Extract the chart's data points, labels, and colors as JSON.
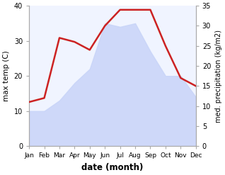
{
  "months": [
    "Jan",
    "Feb",
    "Mar",
    "Apr",
    "May",
    "Jun",
    "Jul",
    "Aug",
    "Sep",
    "Oct",
    "Nov",
    "Dec"
  ],
  "max_temp": [
    10,
    10,
    13,
    18,
    22,
    35,
    34,
    35,
    27,
    20,
    20,
    14
  ],
  "precipitation": [
    11,
    12,
    27,
    26,
    24,
    30,
    34,
    34,
    34,
    25,
    17,
    15
  ],
  "precip_color": "#cc2222",
  "fill_color": "#c8d4f8",
  "fill_alpha": 0.85,
  "xlabel": "date (month)",
  "ylabel_left": "max temp (C)",
  "ylabel_right": "med. precipitation (kg/m2)",
  "ylim_left": [
    0,
    40
  ],
  "ylim_right": [
    0,
    35
  ],
  "yticks_left": [
    0,
    10,
    20,
    30,
    40
  ],
  "yticks_right": [
    0,
    5,
    10,
    15,
    20,
    25,
    30,
    35
  ],
  "spine_color": "#aaaaaa",
  "bg_color": "#ffffff",
  "plot_bg_color": "#f0f4ff"
}
